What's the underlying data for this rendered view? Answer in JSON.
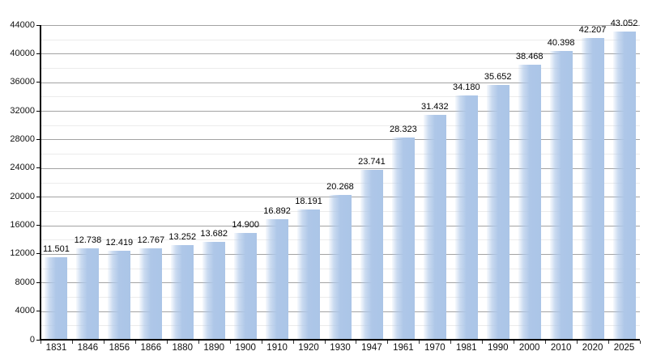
{
  "chart_data": {
    "type": "bar",
    "title": "",
    "xlabel": "",
    "ylabel": "",
    "categories": [
      "1831",
      "1846",
      "1856",
      "1866",
      "1880",
      "1890",
      "1900",
      "1910",
      "1920",
      "1930",
      "1947",
      "1961",
      "1970",
      "1981",
      "1990",
      "2000",
      "2010",
      "2020",
      "2025"
    ],
    "values": [
      11501,
      12738,
      12419,
      12767,
      13252,
      13682,
      14900,
      16892,
      18191,
      20268,
      23741,
      28323,
      31432,
      34180,
      35652,
      38468,
      40398,
      42207,
      43052
    ],
    "value_labels": [
      "11.501",
      "12.738",
      "12.419",
      "12.767",
      "13.252",
      "13.682",
      "14.900",
      "16.892",
      "18.191",
      "20.268",
      "23.741",
      "28.323",
      "31.432",
      "34.180",
      "35.652",
      "38.468",
      "40.398",
      "42.207",
      "43.052"
    ],
    "ylim": [
      0,
      44000
    ],
    "y_major_step": 4000,
    "y_minor_step": 2000,
    "y_tick_labels": [
      "0",
      "4000",
      "8000",
      "12000",
      "16000",
      "20000",
      "24000",
      "28000",
      "32000",
      "36000",
      "40000",
      "44000"
    ],
    "grid": true,
    "legend": "none",
    "colors": {
      "bar": "#aec7e8",
      "major_grid": "#a3a3a3",
      "minor_grid": "#ebebeb",
      "axis": "#000000",
      "label_text": "#000000",
      "background": "#ffffff"
    }
  }
}
